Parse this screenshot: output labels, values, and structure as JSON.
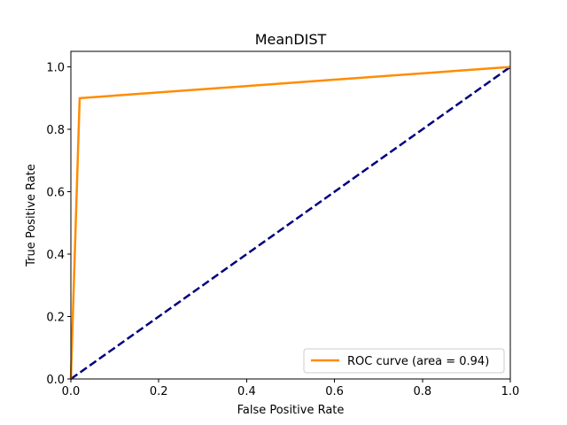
{
  "chart_data": {
    "type": "line",
    "title": "MeanDIST",
    "xlabel": "False Positive Rate",
    "ylabel": "True Positive Rate",
    "xlim": [
      0.0,
      1.0
    ],
    "ylim": [
      0.0,
      1.05
    ],
    "xticks": [
      0.0,
      0.2,
      0.4,
      0.6,
      0.8,
      1.0
    ],
    "yticks": [
      0.0,
      0.2,
      0.4,
      0.6,
      0.8,
      1.0
    ],
    "xtick_labels": [
      "0.0",
      "0.2",
      "0.4",
      "0.6",
      "0.8",
      "1.0"
    ],
    "ytick_labels": [
      "0.0",
      "0.2",
      "0.4",
      "0.6",
      "0.8",
      "1.0"
    ],
    "grid": false,
    "legend_position": "lower right",
    "series": [
      {
        "name": "ROC curve (area = 0.94)",
        "style": "solid",
        "color": "#ff8c00",
        "x": [
          0.0,
          0.02,
          1.0
        ],
        "y": [
          0.0,
          0.9,
          1.0
        ]
      },
      {
        "style": "dashed",
        "color": "#000080",
        "x": [
          0.0,
          1.0
        ],
        "y": [
          0.0,
          1.0
        ]
      }
    ]
  }
}
